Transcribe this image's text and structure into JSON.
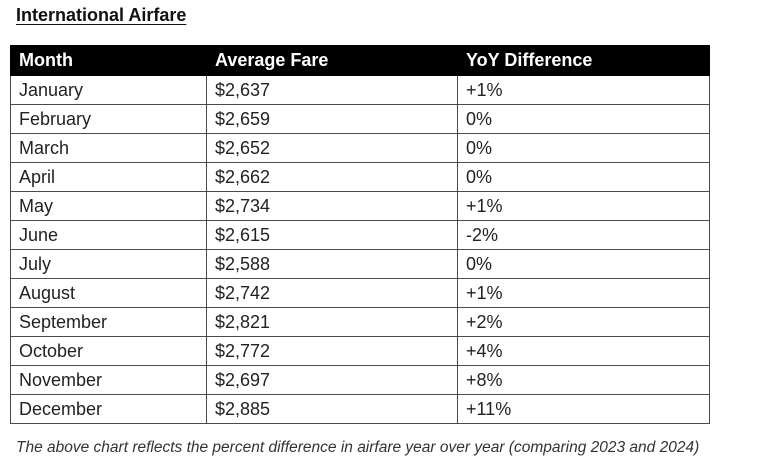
{
  "title": "International Airfare",
  "colors": {
    "header_bg": "#000000",
    "header_text": "#ffffff",
    "positive": "#1fa55a",
    "negative": "#e0312b",
    "neutral": "#222222"
  },
  "table": {
    "headers": [
      "Month",
      "Average Fare",
      "YoY Difference"
    ],
    "rows": [
      {
        "month": "January",
        "fare": "$2,637",
        "yoy": "+1%",
        "trend": "pos"
      },
      {
        "month": "February",
        "fare": "$2,659",
        "yoy": "0%",
        "trend": "zero"
      },
      {
        "month": "March",
        "fare": "$2,652",
        "yoy": "0%",
        "trend": "zero"
      },
      {
        "month": "April",
        "fare": "$2,662",
        "yoy": "0%",
        "trend": "zero"
      },
      {
        "month": "May",
        "fare": "$2,734",
        "yoy": "+1%",
        "trend": "pos"
      },
      {
        "month": "June",
        "fare": "$2,615",
        "yoy": "-2%",
        "trend": "neg"
      },
      {
        "month": "July",
        "fare": "$2,588",
        "yoy": "0%",
        "trend": "zero"
      },
      {
        "month": "August",
        "fare": "$2,742",
        "yoy": "+1%",
        "trend": "pos"
      },
      {
        "month": "September",
        "fare": "$2,821",
        "yoy": "+2%",
        "trend": "pos"
      },
      {
        "month": "October",
        "fare": "$2,772",
        "yoy": "+4%",
        "trend": "pos"
      },
      {
        "month": "November",
        "fare": "$2,697",
        "yoy": "+8%",
        "trend": "pos"
      },
      {
        "month": "December",
        "fare": "$2,885",
        "yoy": "+11%",
        "trend": "pos"
      }
    ]
  },
  "footnote": "The above chart reflects the percent difference in airfare year over year (comparing 2023 and 2024)"
}
